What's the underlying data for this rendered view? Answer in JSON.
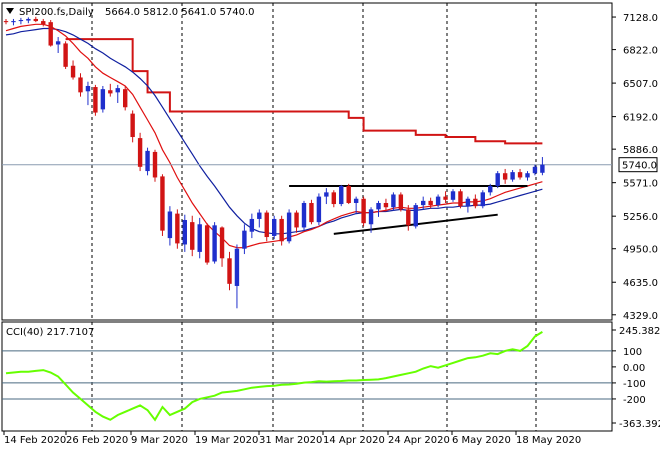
{
  "header": {
    "symbol": "SPI200.fs,Daily",
    "ohlc": "5664.0 5812.0 5641.0 5740.0",
    "menu_icon": "triangle-down-icon"
  },
  "price_axis": {
    "labels": [
      "7128.0",
      "6822.0",
      "6507.0",
      "6192.0",
      "5886.0",
      "5571.0",
      "5256.0",
      "4950.0",
      "4635.0",
      "4329.0"
    ],
    "values": [
      7128,
      6822,
      6507,
      6192,
      5886,
      5571,
      5256,
      4950,
      4635,
      4329
    ],
    "current_price": "5740.0",
    "current_price_value": 5740
  },
  "cci_panel": {
    "title": "CCI(40) 217.7107",
    "axis_labels": [
      "245.3823",
      "100",
      "0.00",
      "-100",
      "-200",
      "-363.392"
    ],
    "axis_values": [
      245.3823,
      100,
      0,
      -100,
      -200,
      -363.392
    ],
    "levels": [
      100,
      -100,
      -200
    ]
  },
  "time_axis": {
    "labels": [
      "14 Feb 2020",
      "26 Feb 2020",
      "9 Mar 2020",
      "19 Mar 2020",
      "31 Mar 2020",
      "14 Apr 2020",
      "24 Apr 2020",
      "6 May 2020",
      "18 May 2020"
    ],
    "bar_index": [
      0,
      8,
      16,
      24,
      32,
      42,
      50,
      58,
      66
    ]
  },
  "colors": {
    "bull": "#1f2fcc",
    "bear": "#d11414",
    "ma_fast": "#e01010",
    "ma_slow": "#1020a0",
    "resistance": "#d11414",
    "cci_line": "#66ff00",
    "current_tag_bg": "#ffffff"
  },
  "chart_data": {
    "type": "candlestick",
    "ohlc": [
      [
        7090,
        7110,
        7060,
        7080
      ],
      [
        7080,
        7110,
        7050,
        7090
      ],
      [
        7090,
        7120,
        7060,
        7100
      ],
      [
        7095,
        7125,
        7070,
        7110
      ],
      [
        7110,
        7130,
        7080,
        7090
      ],
      [
        7090,
        7110,
        7040,
        7060
      ],
      [
        7080,
        7100,
        6850,
        6860
      ],
      [
        6870,
        6940,
        6790,
        6900
      ],
      [
        6880,
        6900,
        6640,
        6660
      ],
      [
        6670,
        6720,
        6540,
        6560
      ],
      [
        6560,
        6600,
        6380,
        6420
      ],
      [
        6430,
        6520,
        6300,
        6480
      ],
      [
        6470,
        6490,
        6200,
        6230
      ],
      [
        6260,
        6480,
        6230,
        6450
      ],
      [
        6440,
        6500,
        6380,
        6410
      ],
      [
        6420,
        6490,
        6320,
        6460
      ],
      [
        6450,
        6480,
        6250,
        6280
      ],
      [
        6220,
        6250,
        5950,
        6000
      ],
      [
        5990,
        6040,
        5680,
        5720
      ],
      [
        5680,
        5900,
        5640,
        5870
      ],
      [
        5860,
        5880,
        5580,
        5620
      ],
      [
        5630,
        5650,
        5070,
        5120
      ],
      [
        5050,
        5350,
        4980,
        5300
      ],
      [
        5280,
        5320,
        4950,
        5000
      ],
      [
        4990,
        5270,
        4920,
        5220
      ],
      [
        5200,
        5260,
        4880,
        4940
      ],
      [
        4920,
        5240,
        4860,
        5180
      ],
      [
        5170,
        5190,
        4800,
        4820
      ],
      [
        4830,
        5200,
        4810,
        5170
      ],
      [
        5150,
        5160,
        4780,
        4860
      ],
      [
        4860,
        4920,
        4560,
        4620
      ],
      [
        4600,
        4990,
        4390,
        4950
      ],
      [
        4950,
        5180,
        4900,
        5120
      ],
      [
        5110,
        5280,
        5050,
        5230
      ],
      [
        5230,
        5320,
        5150,
        5290
      ],
      [
        5290,
        5310,
        5020,
        5060
      ],
      [
        5070,
        5260,
        5040,
        5230
      ],
      [
        5230,
        5260,
        4980,
        5020
      ],
      [
        5020,
        5320,
        5000,
        5290
      ],
      [
        5290,
        5310,
        5100,
        5150
      ],
      [
        5150,
        5400,
        5120,
        5380
      ],
      [
        5380,
        5410,
        5180,
        5200
      ],
      [
        5200,
        5470,
        5170,
        5440
      ],
      [
        5440,
        5520,
        5370,
        5480
      ],
      [
        5480,
        5500,
        5340,
        5370
      ],
      [
        5370,
        5550,
        5350,
        5540
      ],
      [
        5540,
        5560,
        5370,
        5380
      ],
      [
        5380,
        5440,
        5280,
        5420
      ],
      [
        5420,
        5440,
        5160,
        5190
      ],
      [
        5180,
        5340,
        5100,
        5320
      ],
      [
        5320,
        5400,
        5250,
        5380
      ],
      [
        5380,
        5420,
        5300,
        5340
      ],
      [
        5340,
        5480,
        5310,
        5460
      ],
      [
        5460,
        5480,
        5300,
        5320
      ],
      [
        5320,
        5360,
        5120,
        5170
      ],
      [
        5160,
        5380,
        5140,
        5360
      ],
      [
        5360,
        5440,
        5320,
        5400
      ],
      [
        5400,
        5430,
        5330,
        5360
      ],
      [
        5360,
        5460,
        5340,
        5440
      ],
      [
        5440,
        5490,
        5380,
        5410
      ],
      [
        5410,
        5510,
        5390,
        5490
      ],
      [
        5490,
        5510,
        5330,
        5350
      ],
      [
        5350,
        5440,
        5290,
        5420
      ],
      [
        5420,
        5460,
        5330,
        5350
      ],
      [
        5350,
        5500,
        5330,
        5480
      ],
      [
        5480,
        5560,
        5450,
        5540
      ],
      [
        5540,
        5680,
        5520,
        5660
      ],
      [
        5660,
        5700,
        5560,
        5600
      ],
      [
        5600,
        5690,
        5580,
        5670
      ],
      [
        5670,
        5700,
        5600,
        5620
      ],
      [
        5620,
        5680,
        5590,
        5660
      ],
      [
        5660,
        5740,
        5640,
        5720
      ],
      [
        5664,
        5812,
        5641,
        5740
      ]
    ],
    "ma_fast": [
      7000,
      7020,
      7040,
      7050,
      7060,
      7060,
      7040,
      7000,
      6950,
      6880,
      6800,
      6740,
      6660,
      6600,
      6560,
      6520,
      6480,
      6400,
      6280,
      6160,
      6040,
      5880,
      5760,
      5620,
      5500,
      5380,
      5280,
      5180,
      5110,
      5050,
      4980,
      4960,
      4960,
      4980,
      5000,
      5010,
      5020,
      5030,
      5060,
      5080,
      5110,
      5130,
      5160,
      5200,
      5230,
      5260,
      5280,
      5300,
      5290,
      5290,
      5300,
      5310,
      5330,
      5340,
      5330,
      5330,
      5340,
      5350,
      5360,
      5370,
      5380,
      5380,
      5390,
      5390,
      5400,
      5420,
      5450,
      5480,
      5500,
      5520,
      5540,
      5560,
      5580
    ],
    "ma_slow": [
      6960,
      6970,
      6990,
      7000,
      7010,
      7020,
      7020,
      7010,
      6990,
      6960,
      6920,
      6880,
      6830,
      6790,
      6740,
      6700,
      6660,
      6610,
      6550,
      6480,
      6390,
      6280,
      6170,
      6060,
      5950,
      5840,
      5730,
      5630,
      5540,
      5440,
      5340,
      5260,
      5190,
      5140,
      5110,
      5100,
      5090,
      5090,
      5100,
      5110,
      5120,
      5140,
      5160,
      5190,
      5210,
      5240,
      5260,
      5280,
      5290,
      5290,
      5300,
      5300,
      5310,
      5320,
      5310,
      5310,
      5320,
      5330,
      5330,
      5340,
      5340,
      5350,
      5350,
      5360,
      5360,
      5370,
      5390,
      5410,
      5430,
      5450,
      5470,
      5490,
      5510
    ],
    "resistance": [
      null,
      null,
      null,
      null,
      null,
      null,
      null,
      null,
      6920,
      6920,
      6920,
      6920,
      6920,
      6920,
      6920,
      6920,
      6920,
      6620,
      6620,
      6420,
      6420,
      6420,
      6240,
      6240,
      6240,
      6240,
      6240,
      6240,
      6240,
      6240,
      6240,
      6240,
      6240,
      6240,
      6240,
      6240,
      6240,
      6240,
      6240,
      6240,
      6240,
      6240,
      6240,
      6240,
      6240,
      6240,
      6180,
      6180,
      6060,
      6060,
      6060,
      6060,
      6060,
      6060,
      6060,
      6020,
      6020,
      6020,
      6020,
      6000,
      6000,
      6000,
      6000,
      5960,
      5960,
      5960,
      5960,
      5940,
      5940,
      5940,
      5940,
      5940,
      5940
    ],
    "trendlines": [
      {
        "x1": 38,
        "y1": 5540,
        "x2": 70,
        "y2": 5540
      },
      {
        "x1": 44,
        "y1": 5090,
        "x2": 66,
        "y2": 5270
      }
    ],
    "cci": [
      -40,
      -35,
      -30,
      -30,
      -25,
      -20,
      -35,
      -60,
      -110,
      -160,
      -200,
      -240,
      -280,
      -310,
      -330,
      -300,
      -280,
      -260,
      -240,
      -270,
      -330,
      -250,
      -300,
      -280,
      -260,
      -220,
      -200,
      -190,
      -180,
      -160,
      -155,
      -150,
      -140,
      -130,
      -125,
      -120,
      -118,
      -112,
      -110,
      -105,
      -98,
      -95,
      -90,
      -92,
      -90,
      -88,
      -85,
      -85,
      -82,
      -80,
      -78,
      -70,
      -60,
      -50,
      -40,
      -30,
      -10,
      5,
      -5,
      10,
      25,
      40,
      55,
      60,
      70,
      85,
      80,
      100,
      110,
      100,
      130,
      190,
      218
    ],
    "xlabel": "",
    "ylabel": ""
  }
}
